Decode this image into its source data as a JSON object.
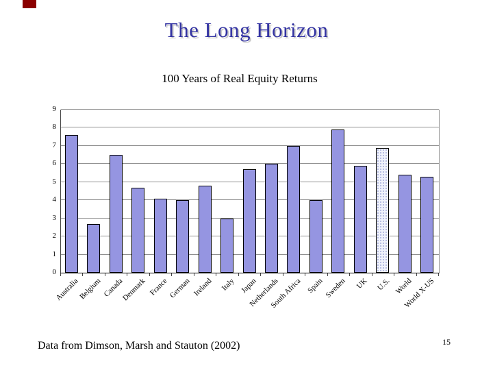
{
  "slide": {
    "title": "The Long Horizon",
    "title_color": "#3333A2",
    "accent_color": "#8B0000",
    "footer": "Data from Dimson, Marsh and Stauton (2002)",
    "page_number": "15"
  },
  "chart_data": {
    "type": "bar",
    "title": "100 Years of Real Equity Returns",
    "categories": [
      "Australia",
      "Belgium",
      "Canada",
      "Denmark",
      "France",
      "German",
      "Ireland",
      "Italy",
      "Japan",
      "Netherlands",
      "South Africa",
      "Spain",
      "Sweden",
      "UK",
      "U.S.",
      "World",
      "World X-US"
    ],
    "values": [
      7.6,
      2.7,
      6.5,
      4.7,
      4.1,
      4.0,
      4.8,
      3.0,
      5.7,
      6.0,
      7.0,
      4.0,
      7.9,
      5.9,
      6.9,
      5.4,
      5.3
    ],
    "highlight_category": "U.S.",
    "highlight_style": "dotted-pattern",
    "xlabel": "",
    "ylabel": "",
    "ylim": [
      0,
      9
    ],
    "ytick_step": 1,
    "grid": true,
    "legend": false,
    "bar_color": "#9595E1",
    "bar_border_color": "#000000",
    "gridline_color": "#8f8f8f"
  }
}
